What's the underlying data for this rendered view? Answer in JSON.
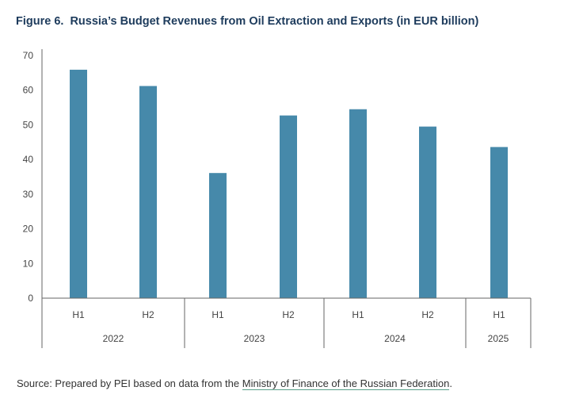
{
  "title": {
    "number": "Figure 6.",
    "text": "Russia’s Budget Revenues from Oil Extraction and Exports (in EUR billion)"
  },
  "chart_data": {
    "type": "bar",
    "title": "Russia’s Budget Revenues from Oil Extraction and Exports (in EUR billion)",
    "categories": [
      "H1",
      "H2",
      "H1",
      "H2",
      "H1",
      "H2",
      "H1"
    ],
    "groups": [
      {
        "label": "2022",
        "count": 2
      },
      {
        "label": "2023",
        "count": 2
      },
      {
        "label": "2024",
        "count": 2
      },
      {
        "label": "2025",
        "count": 1
      }
    ],
    "values": [
      65.9,
      61.2,
      36.1,
      52.7,
      54.5,
      49.5,
      43.6
    ],
    "yticks": [
      0,
      10,
      20,
      30,
      40,
      50,
      60,
      70
    ],
    "ylim": [
      0,
      70
    ],
    "bar_color": "#4689aa",
    "grid": false,
    "xlabel": "",
    "ylabel": ""
  },
  "source": {
    "prefix": "Source: Prepared by PEI based on data from the ",
    "link": "Ministry of Finance of the Russian Federation",
    "suffix": "."
  }
}
